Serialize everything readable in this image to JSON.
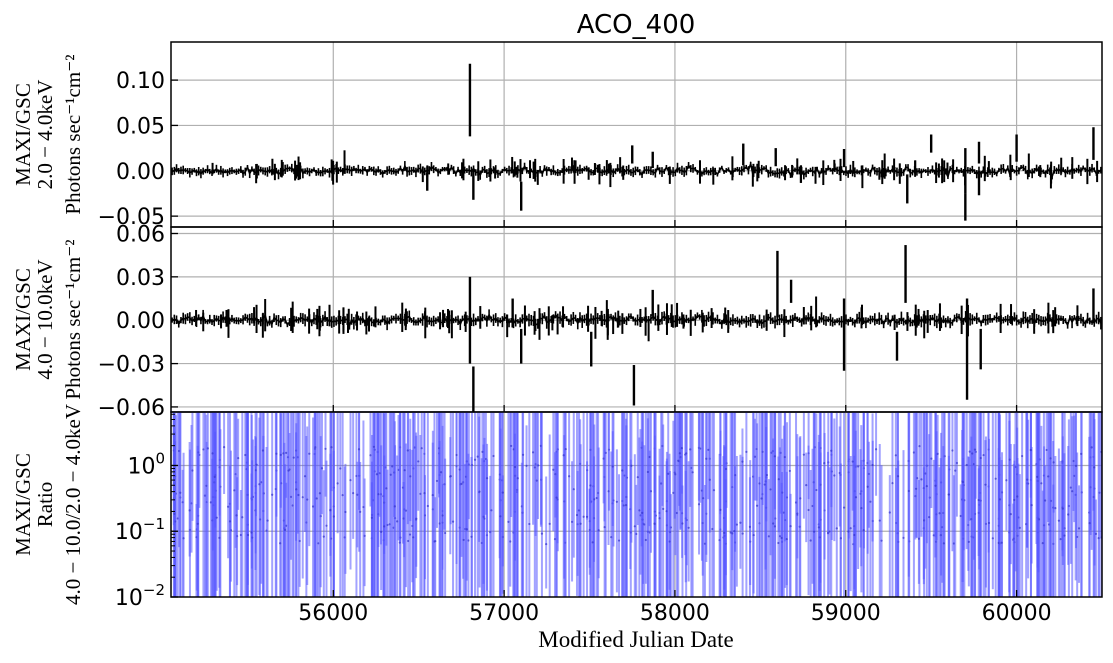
{
  "chart_data": {
    "type": "scatter",
    "title": "ACO_400",
    "xlabel": "Modified Julian Date",
    "xlim": [
      55050,
      60500
    ],
    "xticks": [
      56000,
      57000,
      58000,
      59000,
      60000
    ],
    "xtick_labels": [
      "56000",
      "57000",
      "58000",
      "59000",
      "60000"
    ],
    "grid": true,
    "panels": [
      {
        "ylabel": [
          "MAXI/GSC",
          "2.0 − 4.0keV",
          "Photons sec⁻¹cm⁻²"
        ],
        "ylim": [
          -0.062,
          0.142
        ],
        "yticks": [
          -0.05,
          0.0,
          0.05,
          0.1
        ],
        "ytick_labels": [
          "−0.05",
          "0.00",
          "0.05",
          "0.10"
        ],
        "color": "#000000",
        "noise_sigma": 0.004,
        "errbar": 0.005,
        "outliers": [
          {
            "x": 56800,
            "y": 0.078,
            "err": 0.04
          },
          {
            "x": 56820,
            "y": -0.016,
            "err": 0.016
          },
          {
            "x": 57100,
            "y": -0.028,
            "err": 0.016
          },
          {
            "x": 56550,
            "y": -0.012,
            "err": 0.01
          },
          {
            "x": 57750,
            "y": 0.018,
            "err": 0.01
          },
          {
            "x": 57870,
            "y": 0.012,
            "err": 0.009
          },
          {
            "x": 58400,
            "y": 0.018,
            "err": 0.012
          },
          {
            "x": 58590,
            "y": 0.015,
            "err": 0.01
          },
          {
            "x": 58990,
            "y": 0.014,
            "err": 0.01
          },
          {
            "x": 59360,
            "y": -0.02,
            "err": 0.016
          },
          {
            "x": 59500,
            "y": 0.03,
            "err": 0.01
          },
          {
            "x": 59700,
            "y": 0.0,
            "err": 0.025
          },
          {
            "x": 59700,
            "y": -0.04,
            "err": 0.015
          },
          {
            "x": 59780,
            "y": 0.02,
            "err": 0.012
          },
          {
            "x": 59780,
            "y": -0.015,
            "err": 0.012
          },
          {
            "x": 60000,
            "y": 0.025,
            "err": 0.015
          },
          {
            "x": 60450,
            "y": 0.03,
            "err": 0.018
          }
        ]
      },
      {
        "ylabel": [
          "MAXI/GSC",
          "4.0 − 10.0keV",
          "Photons sec⁻¹cm⁻²"
        ],
        "ylim": [
          -0.0635,
          0.0645
        ],
        "yticks": [
          -0.06,
          -0.03,
          0.0,
          0.03,
          0.06
        ],
        "ytick_labels": [
          "−0.06",
          "−0.03",
          "0.00",
          "0.03",
          "0.06"
        ],
        "color": "#000000",
        "noise_sigma": 0.0028,
        "errbar": 0.004,
        "outliers": [
          {
            "x": 56800,
            "y": 0.0,
            "err": 0.03
          },
          {
            "x": 56820,
            "y": -0.05,
            "err": 0.018
          },
          {
            "x": 57100,
            "y": -0.018,
            "err": 0.012
          },
          {
            "x": 57050,
            "y": 0.005,
            "err": 0.01
          },
          {
            "x": 57510,
            "y": -0.02,
            "err": 0.012
          },
          {
            "x": 57760,
            "y": -0.045,
            "err": 0.014
          },
          {
            "x": 57870,
            "y": 0.012,
            "err": 0.009
          },
          {
            "x": 58600,
            "y": 0.025,
            "err": 0.023
          },
          {
            "x": 58680,
            "y": 0.02,
            "err": 0.008
          },
          {
            "x": 58990,
            "y": -0.01,
            "err": 0.025
          },
          {
            "x": 59350,
            "y": 0.032,
            "err": 0.02
          },
          {
            "x": 59300,
            "y": -0.018,
            "err": 0.01
          },
          {
            "x": 59710,
            "y": -0.02,
            "err": 0.035
          },
          {
            "x": 59790,
            "y": -0.02,
            "err": 0.014
          },
          {
            "x": 60450,
            "y": 0.01,
            "err": 0.012
          }
        ]
      },
      {
        "ylabel": [
          "MAXI/GSC",
          "Ratio",
          "4.0 − 10.0/2.0 − 4.0keV"
        ],
        "scale": "log",
        "ylim": [
          0.01,
          6.5
        ],
        "yticks": [
          0.01,
          0.1,
          1
        ],
        "ytick_labels": [
          [
            "10",
            "−2"
          ],
          [
            "10",
            "−1"
          ],
          [
            "10",
            "0"
          ]
        ],
        "color": "#5555ff"
      }
    ]
  }
}
